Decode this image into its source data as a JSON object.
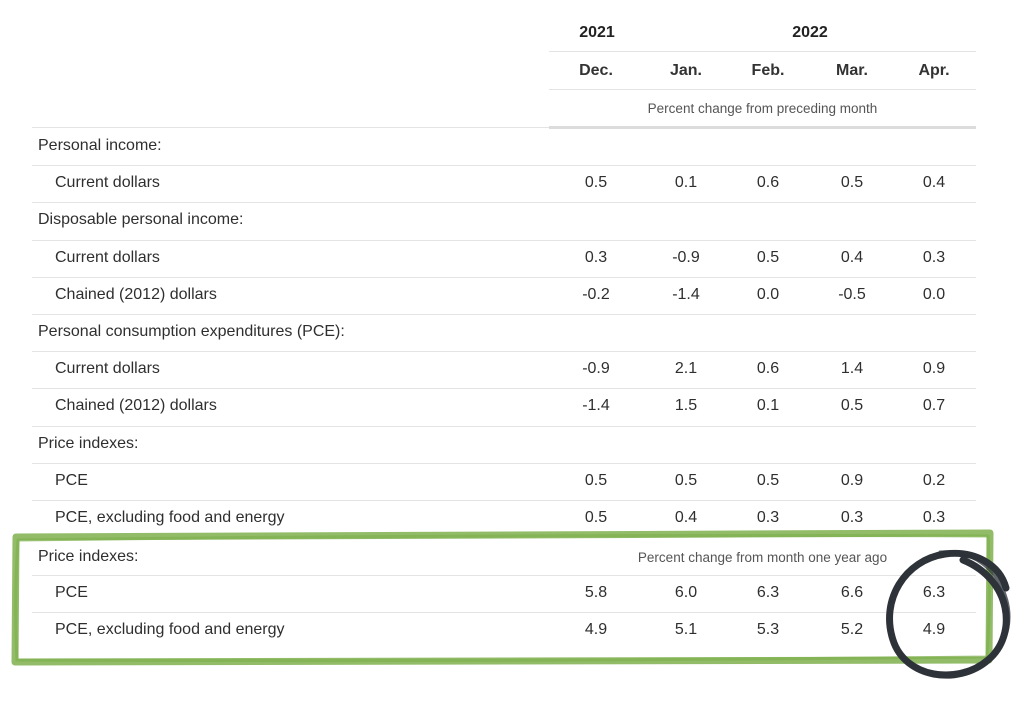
{
  "header": {
    "year_2021": "2021",
    "year_2022": "2022",
    "months": [
      "Dec.",
      "Jan.",
      "Feb.",
      "Mar.",
      "Apr."
    ],
    "monthly_note": "Percent change from preceding month"
  },
  "rows": [
    {
      "type": "section",
      "label": "Personal income:"
    },
    {
      "type": "data",
      "label": "Current dollars",
      "values": [
        "0.5",
        "0.1",
        "0.6",
        "0.5",
        "0.4"
      ]
    },
    {
      "type": "section",
      "label": "Disposable personal income:"
    },
    {
      "type": "data",
      "label": "Current dollars",
      "values": [
        "0.3",
        "-0.9",
        "0.5",
        "0.4",
        "0.3"
      ]
    },
    {
      "type": "data",
      "label": "Chained (2012) dollars",
      "values": [
        "-0.2",
        "-1.4",
        "0.0",
        "-0.5",
        "0.0"
      ]
    },
    {
      "type": "section",
      "label": "Personal consumption expenditures (PCE):"
    },
    {
      "type": "data",
      "label": "Current dollars",
      "values": [
        "-0.9",
        "2.1",
        "0.6",
        "1.4",
        "0.9"
      ]
    },
    {
      "type": "data",
      "label": "Chained (2012) dollars",
      "values": [
        "-1.4",
        "1.5",
        "0.1",
        "0.5",
        "0.7"
      ]
    },
    {
      "type": "section",
      "label": "Price indexes:"
    },
    {
      "type": "data",
      "label": "PCE",
      "values": [
        "0.5",
        "0.5",
        "0.5",
        "0.9",
        "0.2"
      ]
    },
    {
      "type": "data",
      "label": "PCE, excluding food and energy",
      "values": [
        "0.5",
        "0.4",
        "0.3",
        "0.3",
        "0.3"
      ]
    }
  ],
  "yearly": {
    "section_label": "Price indexes:",
    "note": "Percent change from month one year ago",
    "rows": [
      {
        "label": "PCE",
        "values": [
          "5.8",
          "6.0",
          "6.3",
          "6.6",
          "6.3"
        ]
      },
      {
        "label": "PCE, excluding food and energy",
        "values": [
          "4.9",
          "5.1",
          "5.3",
          "5.2",
          "4.9"
        ]
      }
    ]
  },
  "colors": {
    "highlight_box": "#7fb04e",
    "circle": "#2e333a"
  }
}
